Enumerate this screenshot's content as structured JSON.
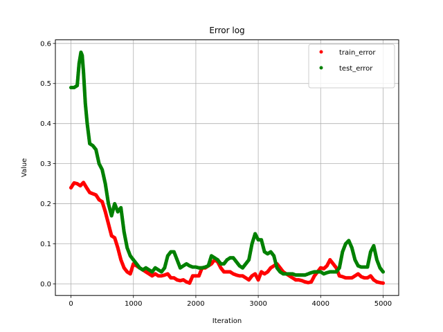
{
  "chart_data": {
    "type": "scatter",
    "title": "Error log",
    "xlabel": "Iteration",
    "ylabel": "Value",
    "xlim": [
      -250,
      5250
    ],
    "ylim": [
      -0.029,
      0.609
    ],
    "x_ticks": [
      0,
      1000,
      2000,
      3000,
      4000,
      5000
    ],
    "x_tick_labels": [
      "0",
      "1000",
      "2000",
      "3000",
      "4000",
      "5000"
    ],
    "y_ticks": [
      0.0,
      0.1,
      0.2,
      0.3,
      0.4,
      0.5,
      0.6
    ],
    "y_tick_labels": [
      "0.0",
      "0.1",
      "0.2",
      "0.3",
      "0.4",
      "0.5",
      "0.6"
    ],
    "grid": true,
    "legend": "top-right",
    "series": [
      {
        "name": "train_error",
        "color": "#ff0000",
        "x": [
          0,
          50,
          100,
          150,
          200,
          250,
          300,
          350,
          400,
          450,
          500,
          550,
          600,
          650,
          700,
          750,
          800,
          850,
          900,
          950,
          1000,
          1050,
          1100,
          1150,
          1200,
          1250,
          1300,
          1350,
          1400,
          1450,
          1500,
          1550,
          1600,
          1650,
          1700,
          1750,
          1800,
          1850,
          1900,
          1950,
          2000,
          2050,
          2100,
          2150,
          2200,
          2250,
          2300,
          2350,
          2400,
          2450,
          2500,
          2550,
          2600,
          2650,
          2700,
          2750,
          2800,
          2850,
          2900,
          2950,
          3000,
          3050,
          3100,
          3150,
          3200,
          3250,
          3300,
          3350,
          3400,
          3450,
          3500,
          3550,
          3600,
          3650,
          3700,
          3750,
          3800,
          3850,
          3900,
          3950,
          4000,
          4050,
          4100,
          4150,
          4200,
          4250,
          4300,
          4350,
          4400,
          4450,
          4500,
          4550,
          4600,
          4650,
          4700,
          4750,
          4800,
          4850,
          4900,
          4950,
          5000
        ],
        "values": [
          0.24,
          0.252,
          0.25,
          0.245,
          0.253,
          0.24,
          0.228,
          0.225,
          0.222,
          0.21,
          0.205,
          0.18,
          0.15,
          0.12,
          0.115,
          0.09,
          0.06,
          0.04,
          0.03,
          0.025,
          0.05,
          0.045,
          0.04,
          0.035,
          0.03,
          0.025,
          0.02,
          0.025,
          0.02,
          0.02,
          0.022,
          0.025,
          0.015,
          0.015,
          0.01,
          0.008,
          0.01,
          0.005,
          0.002,
          0.02,
          0.02,
          0.02,
          0.04,
          0.04,
          0.045,
          0.05,
          0.06,
          0.055,
          0.04,
          0.03,
          0.03,
          0.03,
          0.025,
          0.022,
          0.02,
          0.02,
          0.015,
          0.01,
          0.02,
          0.025,
          0.01,
          0.03,
          0.025,
          0.03,
          0.04,
          0.045,
          0.05,
          0.04,
          0.03,
          0.025,
          0.02,
          0.015,
          0.01,
          0.01,
          0.008,
          0.005,
          0.003,
          0.005,
          0.02,
          0.03,
          0.04,
          0.038,
          0.045,
          0.06,
          0.05,
          0.04,
          0.02,
          0.018,
          0.015,
          0.015,
          0.015,
          0.02,
          0.025,
          0.018,
          0.015,
          0.015,
          0.02,
          0.01,
          0.005,
          0.003,
          0.002
        ]
      },
      {
        "name": "test_error",
        "color": "#008000",
        "x": [
          0,
          50,
          100,
          130,
          160,
          180,
          200,
          230,
          260,
          300,
          350,
          400,
          450,
          500,
          550,
          600,
          650,
          700,
          750,
          800,
          850,
          900,
          950,
          1000,
          1050,
          1100,
          1150,
          1200,
          1250,
          1300,
          1350,
          1400,
          1450,
          1500,
          1550,
          1600,
          1650,
          1700,
          1750,
          1800,
          1850,
          1900,
          1950,
          2000,
          2050,
          2100,
          2150,
          2200,
          2250,
          2300,
          2350,
          2400,
          2450,
          2500,
          2550,
          2600,
          2650,
          2700,
          2750,
          2800,
          2850,
          2900,
          2950,
          3000,
          3050,
          3100,
          3150,
          3200,
          3250,
          3300,
          3350,
          3400,
          3450,
          3500,
          3550,
          3600,
          3650,
          3700,
          3750,
          3800,
          3850,
          3900,
          3950,
          4000,
          4050,
          4100,
          4150,
          4200,
          4250,
          4300,
          4350,
          4400,
          4450,
          4500,
          4550,
          4600,
          4650,
          4700,
          4750,
          4800,
          4850,
          4900,
          4950,
          5000
        ],
        "values": [
          0.49,
          0.49,
          0.495,
          0.55,
          0.578,
          0.57,
          0.53,
          0.45,
          0.4,
          0.35,
          0.345,
          0.335,
          0.3,
          0.285,
          0.25,
          0.2,
          0.17,
          0.2,
          0.18,
          0.19,
          0.13,
          0.09,
          0.07,
          0.06,
          0.05,
          0.04,
          0.035,
          0.04,
          0.035,
          0.03,
          0.04,
          0.035,
          0.03,
          0.04,
          0.07,
          0.08,
          0.08,
          0.06,
          0.04,
          0.045,
          0.05,
          0.045,
          0.042,
          0.042,
          0.04,
          0.04,
          0.042,
          0.045,
          0.07,
          0.065,
          0.06,
          0.05,
          0.05,
          0.06,
          0.065,
          0.065,
          0.055,
          0.045,
          0.04,
          0.05,
          0.06,
          0.1,
          0.125,
          0.11,
          0.11,
          0.08,
          0.075,
          0.08,
          0.07,
          0.04,
          0.03,
          0.025,
          0.025,
          0.025,
          0.025,
          0.022,
          0.022,
          0.022,
          0.022,
          0.025,
          0.028,
          0.03,
          0.03,
          0.03,
          0.025,
          0.028,
          0.03,
          0.03,
          0.03,
          0.04,
          0.08,
          0.1,
          0.108,
          0.09,
          0.06,
          0.045,
          0.042,
          0.042,
          0.042,
          0.08,
          0.095,
          0.06,
          0.04,
          0.03
        ]
      }
    ]
  }
}
